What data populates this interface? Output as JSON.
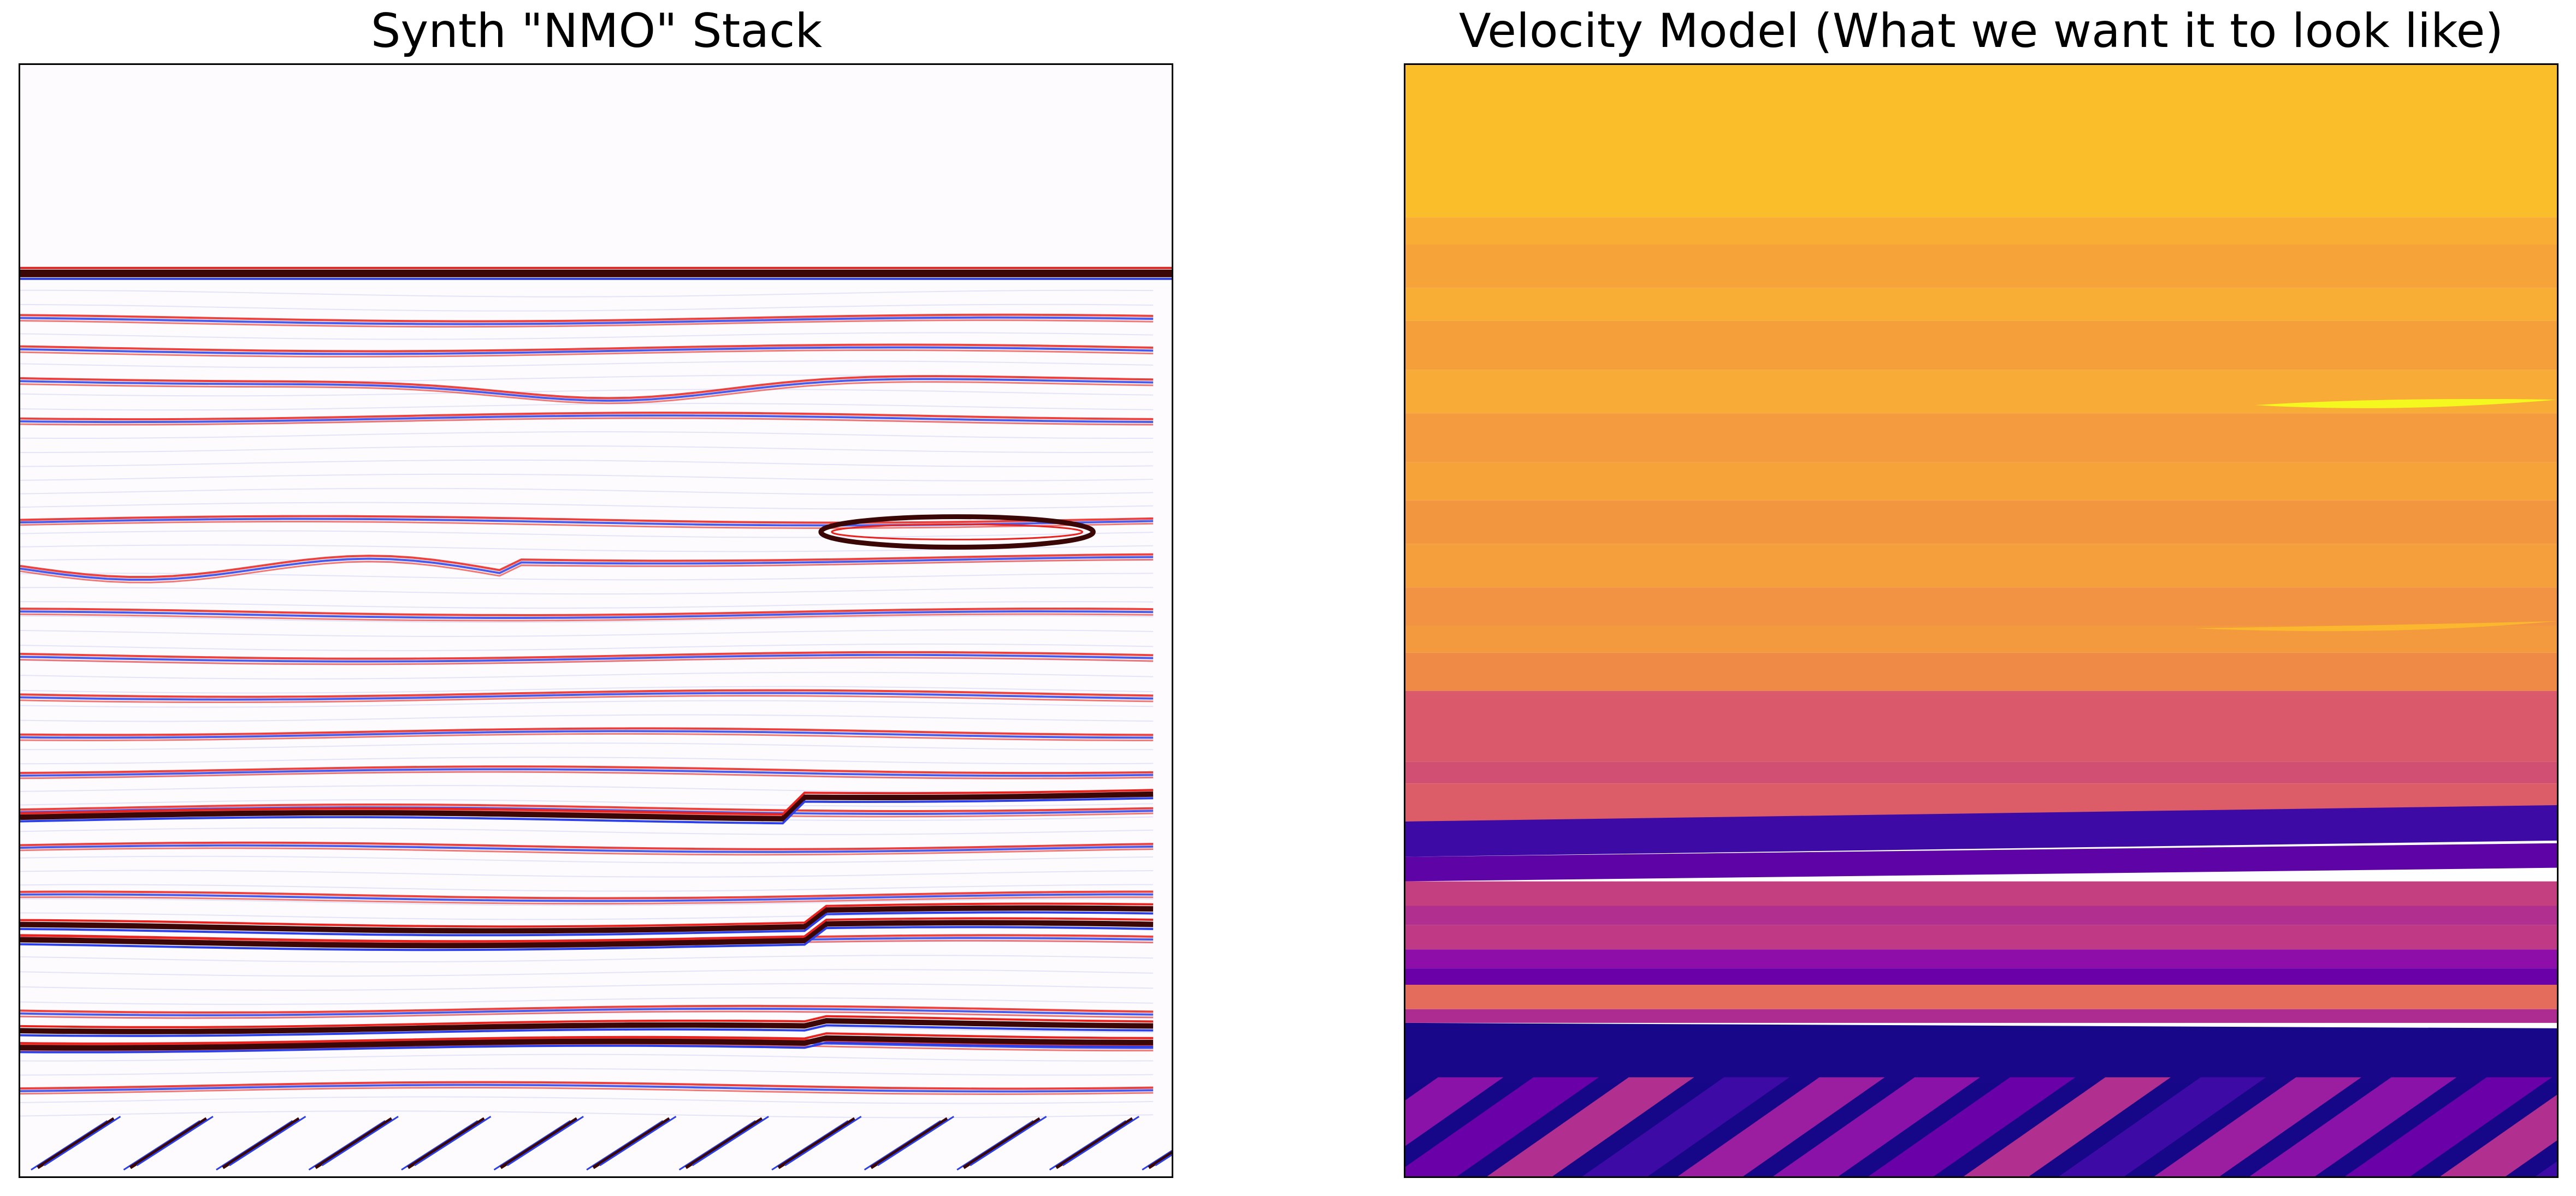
{
  "chart_data": [
    {
      "type": "heatmap",
      "title": "Synth \"NMO\" Stack",
      "colormap": "seismic",
      "xlabel": "",
      "ylabel": "",
      "ticks": "none",
      "colors": {
        "background": "#fdfbfd",
        "positive": "#e8221e",
        "negative": "#2d3fe6",
        "strong": "#3a0606"
      }
    },
    {
      "type": "heatmap",
      "title": "Velocity Model (What we want it to look like)",
      "colormap": "plasma",
      "xlabel": "",
      "ylabel": "",
      "ticks": "none",
      "colors": {
        "top": "#fbbe2b",
        "upper": "#f6a13a",
        "middle": "#d8566d",
        "lower": "#3f0ba6",
        "base": "#180789",
        "bottom": "#8b12a9"
      }
    }
  ]
}
